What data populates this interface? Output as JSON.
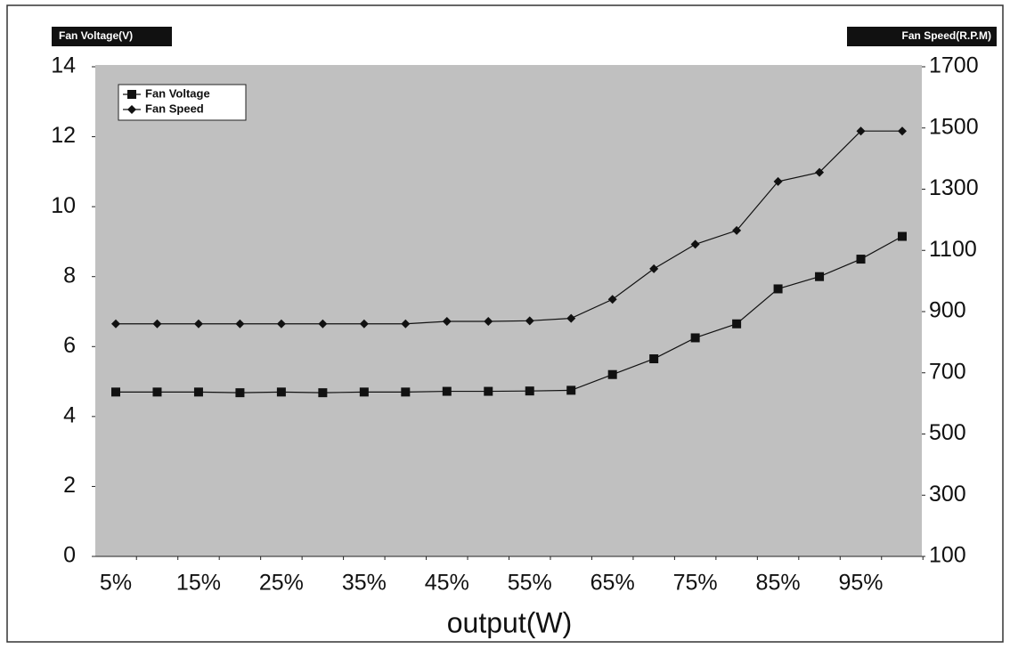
{
  "chart_data": {
    "type": "line",
    "y_label": "Fan Voltage(V)",
    "y2_label": "Fan Speed(R.P.M)",
    "x_label": "output(W)",
    "categories": [
      "5%",
      null,
      "15%",
      null,
      "25%",
      null,
      "35%",
      null,
      "45%",
      null,
      "55%",
      null,
      "65%",
      null,
      "75%",
      null,
      "85%",
      null,
      "95%",
      null
    ],
    "series": [
      {
        "name": "Fan Voltage",
        "color": "#111111",
        "marker": "square",
        "axis": "y",
        "values": [
          4.7,
          4.7,
          4.7,
          4.68,
          4.7,
          4.68,
          4.7,
          4.7,
          4.72,
          4.72,
          4.73,
          4.75,
          5.2,
          5.65,
          6.25,
          6.65,
          7.65,
          8.0,
          8.5,
          9.15
        ]
      },
      {
        "name": "Fan Speed",
        "color": "#111111",
        "marker": "diamond",
        "axis": "y2",
        "values": [
          860,
          860,
          860,
          860,
          860,
          860,
          860,
          860,
          868,
          868,
          870,
          878,
          940,
          1040,
          1120,
          1165,
          1325,
          1355,
          1490,
          1490
        ]
      }
    ],
    "ylim": [
      0,
      14
    ],
    "yticks": [
      0,
      2,
      4,
      6,
      8,
      10,
      12,
      14
    ],
    "y2lim": [
      100,
      1700
    ],
    "y2ticks": [
      100,
      300,
      500,
      700,
      900,
      1100,
      1300,
      1500,
      1700
    ],
    "legend": "upper left",
    "background": "#c0c0c0"
  }
}
